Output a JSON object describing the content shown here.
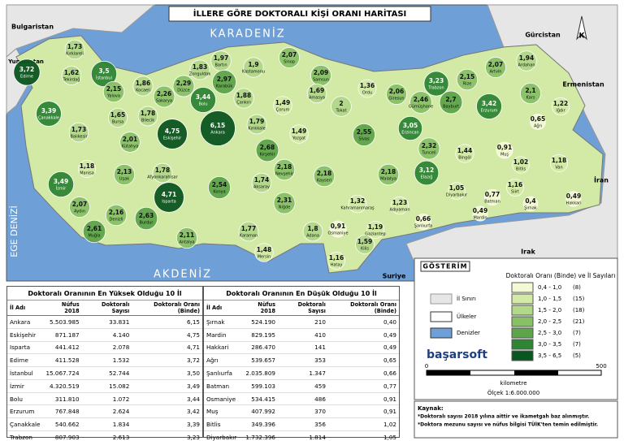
{
  "title": "İLLERE GÖRE DOKTORALI KİŞİ ORANI HARİTASI",
  "north": "K",
  "seas": [
    "KARADENİZ",
    "AKDENİZ",
    "EGE DENİZİ"
  ],
  "countries": [
    "Bulgaristan",
    "Yunanistan",
    "Gürcistan",
    "Ermenistan",
    "İran",
    "Irak",
    "Suriye"
  ],
  "provinces": [
    {
      "name": "Kırklareli",
      "value": 1.73,
      "value_label": "1,73"
    },
    {
      "name": "Edirne",
      "value": 3.72,
      "value_label": "3,72"
    },
    {
      "name": "Tekirdağ",
      "value": 1.62,
      "value_label": "1,62"
    },
    {
      "name": "İstanbul",
      "value": 3.5,
      "value_label": "3,5"
    },
    {
      "name": "Yalova",
      "value": 2.15,
      "value_label": "2,15"
    },
    {
      "name": "Kocaeli",
      "value": 1.86,
      "value_label": "1,86"
    },
    {
      "name": "Sakarya",
      "value": 2.26,
      "value_label": "2,26"
    },
    {
      "name": "Düzce",
      "value": 2.29,
      "value_label": "2,29"
    },
    {
      "name": "Zonguldak",
      "value": 1.83,
      "value_label": "1,83"
    },
    {
      "name": "Bartın",
      "value": 1.97,
      "value_label": "1,97"
    },
    {
      "name": "Karabük",
      "value": 2.97,
      "value_label": "2,97"
    },
    {
      "name": "Kastamonu",
      "value": 1.9,
      "value_label": "1,9"
    },
    {
      "name": "Sinop",
      "value": 2.07,
      "value_label": "2,07"
    },
    {
      "name": "Samsun",
      "value": 2.09,
      "value_label": "2,09"
    },
    {
      "name": "Ordu",
      "value": 1.36,
      "value_label": "1,36"
    },
    {
      "name": "Giresun",
      "value": 2.06,
      "value_label": "2,06"
    },
    {
      "name": "Trabzon",
      "value": 3.23,
      "value_label": "3,23"
    },
    {
      "name": "Rize",
      "value": 2.15,
      "value_label": "2,15"
    },
    {
      "name": "Artvin",
      "value": 2.07,
      "value_label": "2,07"
    },
    {
      "name": "Ardahan",
      "value": 1.94,
      "value_label": "1,94"
    },
    {
      "name": "Kars",
      "value": 2.1,
      "value_label": "2,1"
    },
    {
      "name": "Iğdır",
      "value": 1.22,
      "value_label": "1,22"
    },
    {
      "name": "Ağrı",
      "value": 0.65,
      "value_label": "0,65"
    },
    {
      "name": "Bolu",
      "value": 3.44,
      "value_label": "3,44"
    },
    {
      "name": "Çankırı",
      "value": 1.88,
      "value_label": "1,88"
    },
    {
      "name": "Çorum",
      "value": 1.49,
      "value_label": "1,49"
    },
    {
      "name": "Amasya",
      "value": 1.69,
      "value_label": "1,69"
    },
    {
      "name": "Tokat",
      "value": 2,
      "value_label": "2"
    },
    {
      "name": "Gümüşhane",
      "value": 2.46,
      "value_label": "2,46"
    },
    {
      "name": "Bayburt",
      "value": 2.7,
      "value_label": "2,7"
    },
    {
      "name": "Erzurum",
      "value": 3.42,
      "value_label": "3,42"
    },
    {
      "name": "Erzincan",
      "value": 3.05,
      "value_label": "3,05"
    },
    {
      "name": "Tunceli",
      "value": 2.32,
      "value_label": "2,32"
    },
    {
      "name": "Bingöl",
      "value": 1.44,
      "value_label": "1,44"
    },
    {
      "name": "Muş",
      "value": 0.91,
      "value_label": "0,91"
    },
    {
      "name": "Bitlis",
      "value": 1.02,
      "value_label": "1,02"
    },
    {
      "name": "Van",
      "value": 1.18,
      "value_label": "1,18"
    },
    {
      "name": "Hakkari",
      "value": 0.49,
      "value_label": "0,49"
    },
    {
      "name": "Şırnak",
      "value": 0.4,
      "value_label": "0,4"
    },
    {
      "name": "Siirt",
      "value": 1.16,
      "value_label": "1,16"
    },
    {
      "name": "Batman",
      "value": 0.77,
      "value_label": "0,77"
    },
    {
      "name": "Mardin",
      "value": 0.49,
      "value_label": "0,49"
    },
    {
      "name": "Diyarbakır",
      "value": 1.05,
      "value_label": "1,05"
    },
    {
      "name": "Elazığ",
      "value": 3.12,
      "value_label": "3,12"
    },
    {
      "name": "Malatya",
      "value": 2.18,
      "value_label": "2,18"
    },
    {
      "name": "Adıyaman",
      "value": 1.23,
      "value_label": "1,23"
    },
    {
      "name": "Şanlıurfa",
      "value": 0.66,
      "value_label": "0,66"
    },
    {
      "name": "Gaziantep",
      "value": 1.19,
      "value_label": "1,19"
    },
    {
      "name": "Kilis",
      "value": 1.59,
      "value_label": "1,59"
    },
    {
      "name": "Osmaniye",
      "value": 0.91,
      "value_label": "0,91"
    },
    {
      "name": "Hatay",
      "value": 1.16,
      "value_label": "1,16"
    },
    {
      "name": "Adana",
      "value": 1.8,
      "value_label": "1,8"
    },
    {
      "name": "Mersin",
      "value": 1.48,
      "value_label": "1,48"
    },
    {
      "name": "Kahramanmaraş",
      "value": 1.32,
      "value_label": "1,32"
    },
    {
      "name": "Kayseri",
      "value": 2.18,
      "value_label": "2,18"
    },
    {
      "name": "Sivas",
      "value": 2.55,
      "value_label": "2,55"
    },
    {
      "name": "Yozgat",
      "value": 1.49,
      "value_label": "1,49"
    },
    {
      "name": "Kırıkkale",
      "value": 1.79,
      "value_label": "1,79"
    },
    {
      "name": "Ankara",
      "value": 6.15,
      "value_label": "6,15"
    },
    {
      "name": "Kırşehir",
      "value": 2.68,
      "value_label": "2,68"
    },
    {
      "name": "Nevşehir",
      "value": 2.18,
      "value_label": "2,18"
    },
    {
      "name": "Aksaray",
      "value": 1.74,
      "value_label": "1,74"
    },
    {
      "name": "Niğde",
      "value": 2.31,
      "value_label": "2,31"
    },
    {
      "name": "Karaman",
      "value": 1.77,
      "value_label": "1,77"
    },
    {
      "name": "Konya",
      "value": 2.54,
      "value_label": "2,54"
    },
    {
      "name": "Antalya",
      "value": 2.11,
      "value_label": "2,11"
    },
    {
      "name": "Isparta",
      "value": 4.71,
      "value_label": "4,71"
    },
    {
      "name": "Burdur",
      "value": 2.63,
      "value_label": "2,63"
    },
    {
      "name": "Afyonkarahisar",
      "value": 1.78,
      "value_label": "1,78"
    },
    {
      "name": "Eskişehir",
      "value": 4.75,
      "value_label": "4,75"
    },
    {
      "name": "Bilecik",
      "value": 1.78,
      "value_label": "1,78"
    },
    {
      "name": "Bursa",
      "value": 1.65,
      "value_label": "1,65"
    },
    {
      "name": "Kütahya",
      "value": 2.01,
      "value_label": "2,01"
    },
    {
      "name": "Uşak",
      "value": 2.13,
      "value_label": "2,13"
    },
    {
      "name": "Denizli",
      "value": 2.16,
      "value_label": "2,16"
    },
    {
      "name": "Muğla",
      "value": 2.61,
      "value_label": "2,61"
    },
    {
      "name": "Aydın",
      "value": 2.07,
      "value_label": "2,07"
    },
    {
      "name": "İzmir",
      "value": 3.49,
      "value_label": "3,49"
    },
    {
      "name": "Manisa",
      "value": 1.18,
      "value_label": "1,18"
    },
    {
      "name": "Balıkesir",
      "value": 1.73,
      "value_label": "1,73"
    },
    {
      "name": "Çanakkale",
      "value": 3.39,
      "value_label": "3,39"
    }
  ],
  "legend": {
    "title": "GÖSTERİM",
    "subtitle": "Doktoralı Oranı (Binde) ve İl Sayıları",
    "symbols": [
      "İl Sınırı",
      "Ülkeler",
      "Denizler"
    ],
    "classes": [
      {
        "label": "0,4 - 1,0",
        "count": "(8)",
        "range": [
          0.4,
          1.0
        ],
        "color": "#f3f9d2"
      },
      {
        "label": "1,0 - 1,5",
        "count": "(15)",
        "range": [
          1.0,
          1.5
        ],
        "color": "#d3eaa6"
      },
      {
        "label": "1,5 - 2,0",
        "count": "(18)",
        "range": [
          1.5,
          2.0
        ],
        "color": "#b2d88a"
      },
      {
        "label": "2,0 - 2,5",
        "count": "(21)",
        "range": [
          2.0,
          2.5
        ],
        "color": "#88c067"
      },
      {
        "label": "2,5 - 3,0",
        "count": "(7)",
        "range": [
          2.5,
          3.0
        ],
        "color": "#5ea44a"
      },
      {
        "label": "3,0 - 3,5",
        "count": "(7)",
        "range": [
          3.0,
          3.5
        ],
        "color": "#2e8534"
      },
      {
        "label": "3,5 - 6,5",
        "count": "(5)",
        "range": [
          3.5,
          6.5
        ],
        "color": "#0b5520"
      }
    ],
    "logo": "başarsoft",
    "scale": {
      "start": "0",
      "end": "500",
      "unit": "kilometre",
      "ratio": "Ölçek 1:6.000.000"
    }
  },
  "source": {
    "title": "Kaynak:",
    "notes": [
      "*Doktoralı sayısı 2018 yılına aittir ve ikametgah baz alınmıştır.",
      "*Doktora mezunu sayısı ve nüfus bilgisi TÜİK'ten temin edilmiştir."
    ]
  },
  "tables": [
    {
      "title": "Doktoralı Oranının En Yüksek Olduğu 10 İl",
      "headers": [
        "İl Adı",
        "Nüfus 2018",
        "Doktoralı Sayısı",
        "Doktoralı Oranı (Binde)"
      ],
      "rows": [
        [
          "Ankara",
          "5.503.985",
          "33.831",
          "6,15"
        ],
        [
          "Eskişehir",
          "871.187",
          "4.140",
          "4,75"
        ],
        [
          "Isparta",
          "441.412",
          "2.078",
          "4,71"
        ],
        [
          "Edirne",
          "411.528",
          "1.532",
          "3,72"
        ],
        [
          "İstanbul",
          "15.067.724",
          "52.744",
          "3,50"
        ],
        [
          "İzmir",
          "4.320.519",
          "15.082",
          "3,49"
        ],
        [
          "Bolu",
          "311.810",
          "1.072",
          "3,44"
        ],
        [
          "Erzurum",
          "767.848",
          "2.624",
          "3,42"
        ],
        [
          "Çanakkale",
          "540.662",
          "1.834",
          "3,39"
        ],
        [
          "Trabzon",
          "807.903",
          "2.613",
          "3,23"
        ]
      ]
    },
    {
      "title": "Doktoralı Oranının En Düşük Olduğu 10 İl",
      "headers": [
        "İl Adı",
        "Nüfus 2018",
        "Doktoralı Sayısı",
        "Doktoralı Oranı (Binde)"
      ],
      "rows": [
        [
          "Şırnak",
          "524.190",
          "210",
          "0,40"
        ],
        [
          "Mardin",
          "829.195",
          "410",
          "0,49"
        ],
        [
          "Hakkari",
          "286.470",
          "141",
          "0,49"
        ],
        [
          "Ağrı",
          "539.657",
          "353",
          "0,65"
        ],
        [
          "Şanlıurfa",
          "2.035.809",
          "1.347",
          "0,66"
        ],
        [
          "Batman",
          "599.103",
          "459",
          "0,77"
        ],
        [
          "Osmaniye",
          "534.415",
          "486",
          "0,91"
        ],
        [
          "Muş",
          "407.992",
          "370",
          "0,91"
        ],
        [
          "Bitlis",
          "349.396",
          "356",
          "1,02"
        ],
        [
          "Diyarbakır",
          "1.732.396",
          "1.814",
          "1,05"
        ]
      ]
    }
  ]
}
